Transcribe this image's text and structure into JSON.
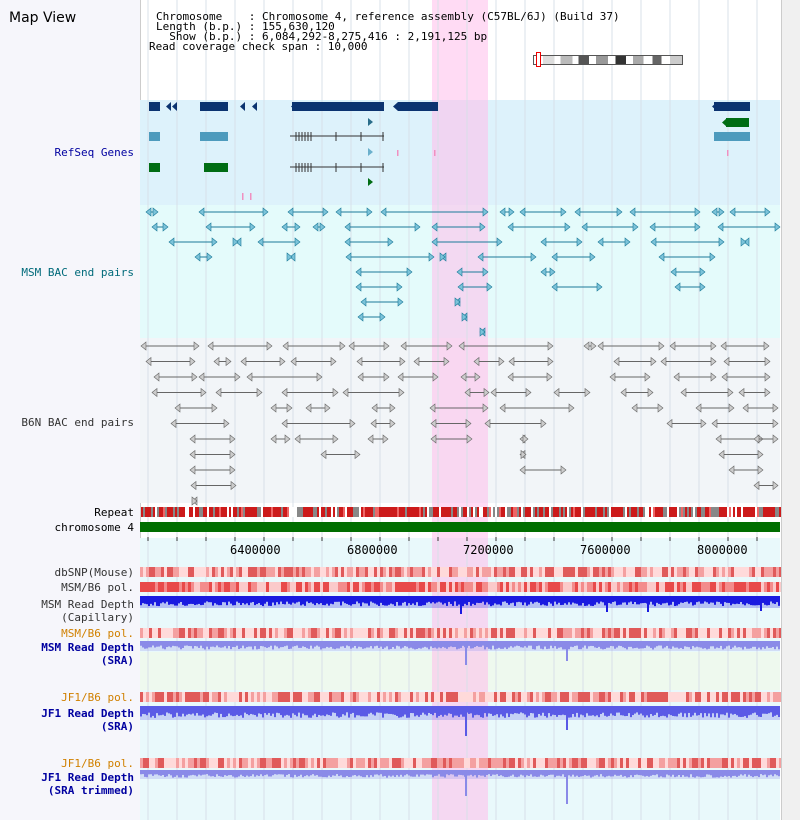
{
  "panel": {
    "title": "Map View"
  },
  "header": {
    "line1": "Chromosome    : Chromosome 4, reference assembly (C57BL/6J) (Build 37)",
    "line2": "Length (b.p.) : 155,630,120",
    "line3": "  Show (b.p.) : 6,084,292-8,275,416 : 2,191,125 bp",
    "line4": "Read coverage check span : 10,000"
  },
  "tracks": {
    "refseq": "RefSeq Genes",
    "msm_bac": "MSM BAC end pairs",
    "b6n_bac": "B6N BAC end pairs",
    "repeat": "Repeat",
    "chromosome": "chromosome 4",
    "dbsnp": "dbSNP(Mouse)",
    "msm_pol": "MSM/B6 pol.",
    "msm_depth_cap_1": "MSM Read Depth",
    "msm_depth_cap_2": "(Capillary)",
    "msm_pol_sra": "MSM/B6 pol.",
    "msm_depth_sra_1": "MSM Read Depth",
    "msm_depth_sra_2": "(SRA)",
    "jf1_pol": "JF1/B6 pol.",
    "jf1_depth_1": "JF1 Read Depth",
    "jf1_depth_2": "(SRA)",
    "jf1_pol_trim": "JF1/B6 pol.",
    "jf1_trim_1": "JF1 Read Depth",
    "jf1_trim_2": "(SRA trimmed)"
  },
  "axis": {
    "ticks": [
      "6400000",
      "6800000",
      "7200000",
      "7600000",
      "8000000"
    ]
  },
  "colors": {
    "refseq_bg": "#ddf2fb",
    "msm_bg": "#e4fbfb",
    "highlight": "#ffd6f3",
    "label_blue": "#0000a0",
    "label_teal": "#006a7a",
    "label_orange": "#d08000"
  }
}
